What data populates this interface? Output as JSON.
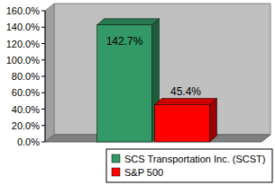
{
  "chart_data": {
    "type": "bar",
    "categories": [
      null
    ],
    "series": [
      {
        "name": "SCS Transportation Inc. (SCST)",
        "color": "#339966",
        "values": [
          142.7
        ],
        "value_labels": [
          "142.7%"
        ]
      },
      {
        "name": "S&P 500",
        "color": "#ff0000",
        "values": [
          45.4
        ],
        "value_labels": [
          "45.4%"
        ]
      }
    ],
    "ylim": [
      0,
      160
    ],
    "yticks": [
      {
        "value": 0,
        "label": "0.0%"
      },
      {
        "value": 20,
        "label": "20.0%"
      },
      {
        "value": 40,
        "label": "40.0%"
      },
      {
        "value": 60,
        "label": "60.0%"
      },
      {
        "value": 80,
        "label": "80.0%"
      },
      {
        "value": 100,
        "label": "100.0%"
      },
      {
        "value": 120,
        "label": "120.0%"
      },
      {
        "value": 140,
        "label": "140.0%"
      },
      {
        "value": 160,
        "label": "160.0%"
      }
    ],
    "grid": false,
    "data_labels": true,
    "legend": "bottom"
  }
}
